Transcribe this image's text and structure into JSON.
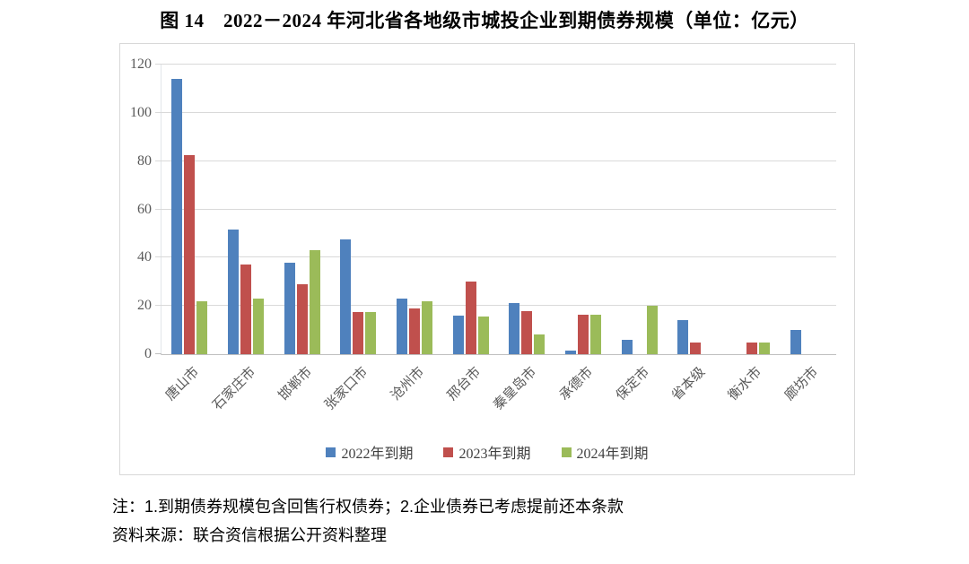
{
  "title": "图 14　2022－2024 年河北省各地级市城投企业到期债券规模（单位：亿元）",
  "notes": {
    "line1": "注：1.到期债券规模包含回售行权债券；2.企业债券已考虑提前还本条款",
    "line2": "资料来源：联合资信根据公开资料整理"
  },
  "colors": {
    "series_2022": "#4F81BD",
    "series_2023": "#C0504D",
    "series_2024": "#9BBB59",
    "gridline": "#D9D9D9",
    "axis_line": "#BFBFBF",
    "tick_text": "#595959",
    "frame_border": "#D8D8D8"
  },
  "chart_data": {
    "type": "bar",
    "title": "图 14　2022－2024 年河北省各地级市城投企业到期债券规模（单位：亿元）",
    "xlabel": "",
    "ylabel": "",
    "ylim": [
      0,
      120
    ],
    "yticks": [
      0,
      20,
      40,
      60,
      80,
      100,
      120
    ],
    "grid": true,
    "legend_position": "bottom",
    "categories": [
      "唐山市",
      "石家庄市",
      "邯郸市",
      "张家口市",
      "沧州市",
      "邢台市",
      "秦皇岛市",
      "承德市",
      "保定市",
      "省本级",
      "衡水市",
      "廊坊市"
    ],
    "series": [
      {
        "name": "2022年到期",
        "color": "#4F81BD",
        "values": [
          114,
          51.5,
          38,
          47.5,
          23,
          16,
          21,
          1.5,
          6,
          14,
          0,
          10
        ]
      },
      {
        "name": "2023年到期",
        "color": "#C0504D",
        "values": [
          82.5,
          37,
          29,
          17.5,
          19,
          30,
          18,
          16.5,
          0,
          5,
          5,
          0
        ]
      },
      {
        "name": "2024年到期",
        "color": "#9BBB59",
        "values": [
          22,
          23,
          43,
          17.5,
          22,
          15.5,
          8,
          16.5,
          20,
          0,
          5,
          0
        ]
      }
    ]
  }
}
